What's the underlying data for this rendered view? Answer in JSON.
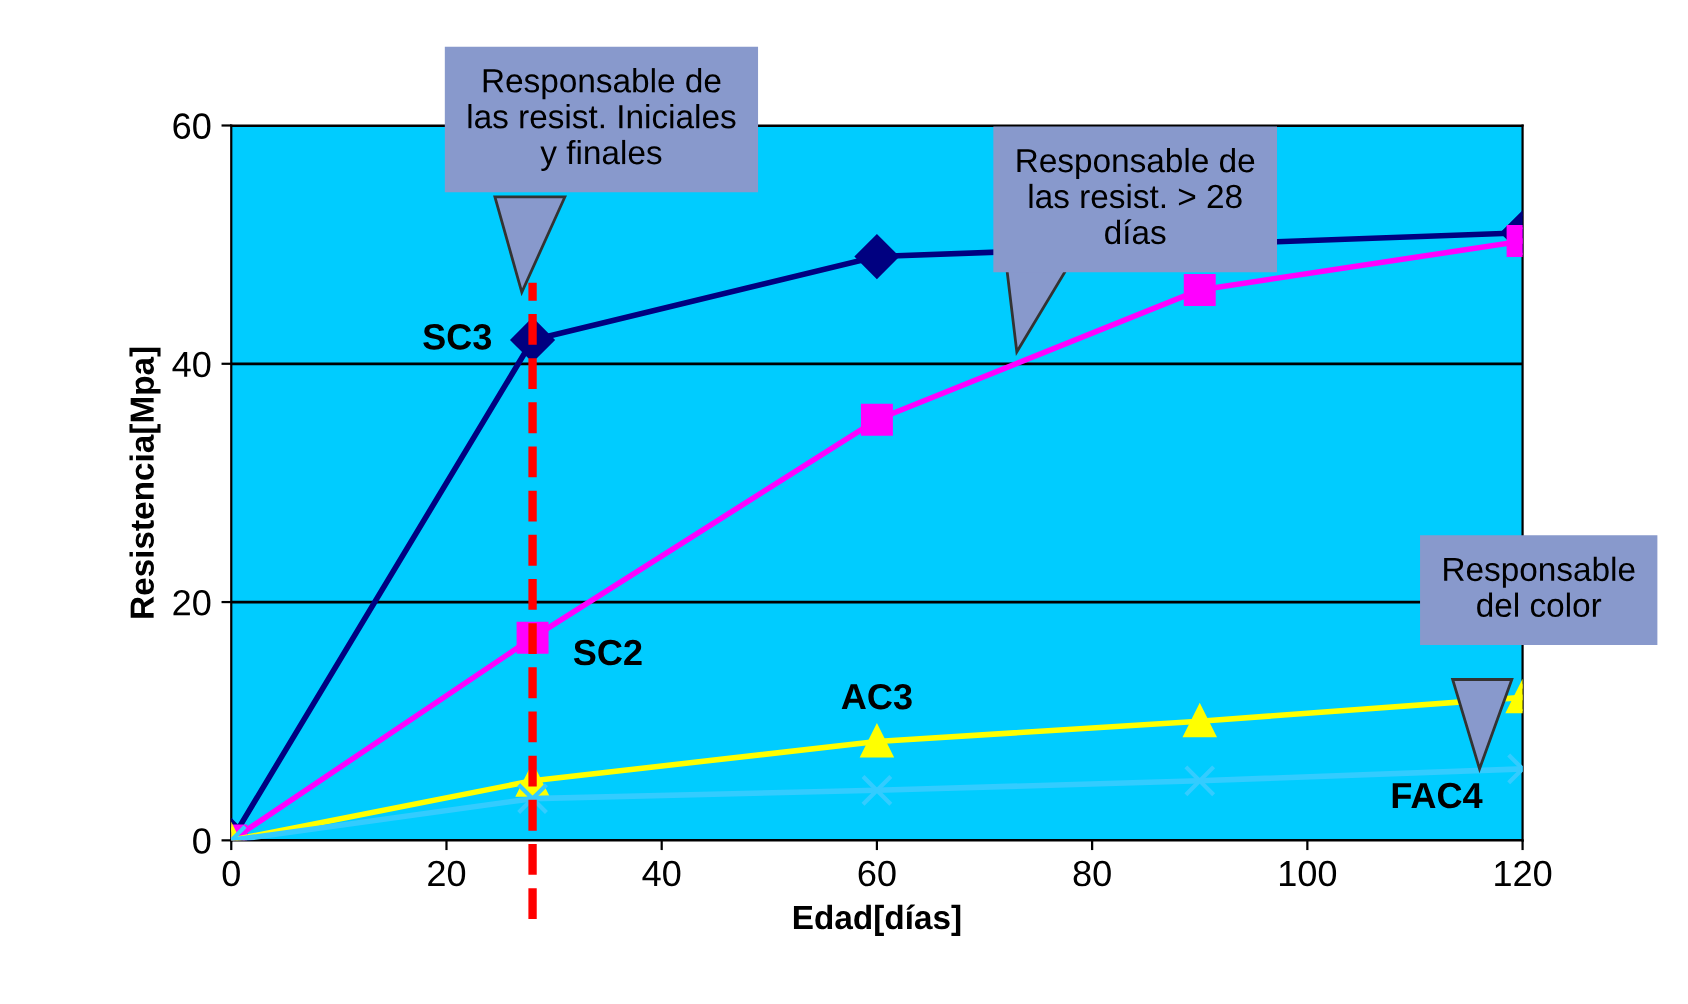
{
  "chart_data": {
    "type": "line",
    "xlabel": "Edad[días]",
    "ylabel": "Resistencia[Mpa]",
    "x": [
      0,
      28,
      60,
      90,
      120
    ],
    "series": [
      {
        "name": "SC3",
        "color": "#000080",
        "marker": "diamond",
        "values": [
          0,
          42,
          49,
          null,
          51
        ]
      },
      {
        "name": "SC2",
        "color": "#ff00ff",
        "marker": "square",
        "values": [
          0,
          17,
          35.3,
          46.2,
          50.3
        ]
      },
      {
        "name": "AC3",
        "color": "#ffff00",
        "marker": "triangle",
        "values": [
          0,
          5,
          8.3,
          10,
          12
        ]
      },
      {
        "name": "FAC4",
        "color": "#33ccff",
        "marker": "cross",
        "values": [
          0,
          3.5,
          4.2,
          5,
          6
        ]
      }
    ],
    "xlim": [
      0,
      120
    ],
    "ylim": [
      0,
      60
    ],
    "xticks": [
      0,
      20,
      40,
      60,
      80,
      100,
      120
    ],
    "yticks": [
      0,
      20,
      40,
      60
    ],
    "grid": "y",
    "ref_lines": [
      {
        "axis": "x",
        "value": 28,
        "color": "#ff0000",
        "line_style": "dashed"
      }
    ],
    "annotations": [
      "Responsable de\nlas resist. Iniciales\ny finales",
      "Responsable de\nlas resist. > 28\ndías",
      "Responsable\ndel color"
    ]
  }
}
